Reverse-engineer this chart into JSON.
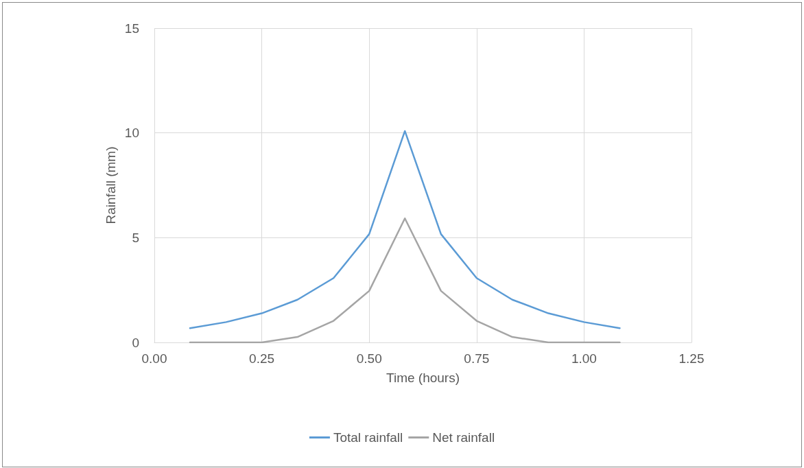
{
  "chart_data": {
    "type": "line",
    "xlabel": "Time (hours)",
    "ylabel": "Rainfall (mm)",
    "x": [
      0.083,
      0.167,
      0.25,
      0.333,
      0.417,
      0.5,
      0.583,
      0.667,
      0.75,
      0.833,
      0.917,
      1.0,
      1.083
    ],
    "series": [
      {
        "name": "Total rainfall",
        "color": "#5b9bd5",
        "values": [
          0.68,
          0.97,
          1.39,
          2.04,
          3.07,
          5.17,
          10.09,
          5.17,
          3.07,
          2.04,
          1.39,
          0.97,
          0.68
        ]
      },
      {
        "name": "Net rainfall",
        "color": "#a5a5a5",
        "values": [
          0,
          0,
          0,
          0.26,
          1.03,
          2.46,
          5.92,
          2.46,
          1.03,
          0.26,
          0,
          0,
          0
        ]
      }
    ],
    "xlim": [
      0,
      1.25
    ],
    "xticks": [
      {
        "value": 0,
        "label": "0.00"
      },
      {
        "value": 0.25,
        "label": "0.25"
      },
      {
        "value": 0.5,
        "label": "0.50"
      },
      {
        "value": 0.75,
        "label": "0.75"
      },
      {
        "value": 1,
        "label": "1.00"
      },
      {
        "value": 1.25,
        "label": "1.25"
      }
    ],
    "ylim": [
      0,
      15
    ],
    "yticks": [
      0,
      5,
      10,
      15
    ],
    "grid": true,
    "legend": "bottom",
    "marker": "none",
    "line_style": "solid"
  }
}
